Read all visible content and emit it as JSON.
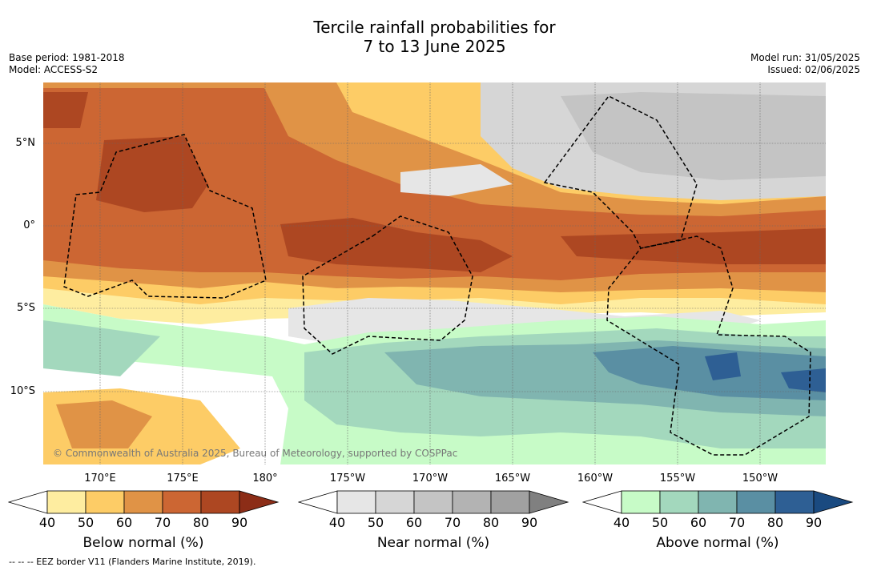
{
  "title_line1": "Tercile rainfall probabilities for",
  "title_line2": "7 to 13 June 2025",
  "meta": {
    "base_period": "Base period: 1981-2018",
    "model": "Model: ACCESS-S2",
    "model_run": "Model run: 31/05/2025",
    "issued": "Issued: 02/06/2025"
  },
  "lat_labels": [
    "5°N",
    "0°",
    "5°S",
    "10°S"
  ],
  "lon_labels": [
    "170°E",
    "175°E",
    "180°",
    "175°W",
    "170°W",
    "165°W",
    "160°W",
    "155°W",
    "150°W"
  ],
  "copyright": "© Commonwealth of Australia 2025, Bureau of Meteorology, supported by COSPPac",
  "colorbars": [
    {
      "title": "Below normal (%)",
      "ticks": [
        "40",
        "50",
        "60",
        "70",
        "80",
        "90"
      ],
      "colors": [
        "#ffffff",
        "#feeda0",
        "#fdcc66",
        "#e09346",
        "#cc6633",
        "#ad4722",
        "#8c2d17"
      ]
    },
    {
      "title": "Near normal (%)",
      "ticks": [
        "40",
        "50",
        "60",
        "70",
        "80",
        "90"
      ],
      "colors": [
        "#ffffff",
        "#e6e6e6",
        "#d6d6d6",
        "#c4c4c4",
        "#b3b3b3",
        "#a1a1a1",
        "#808080"
      ]
    },
    {
      "title": "Above normal (%)",
      "ticks": [
        "40",
        "50",
        "60",
        "70",
        "80",
        "90"
      ],
      "colors": [
        "#ffffff",
        "#c7fbc7",
        "#a3d8bd",
        "#80b5b0",
        "#5a8fa3",
        "#2e5f94",
        "#1a4a80"
      ]
    }
  ],
  "eez_legend": "--  --  -- EEZ border V11 (Flanders Marine Institute, 2019)."
}
